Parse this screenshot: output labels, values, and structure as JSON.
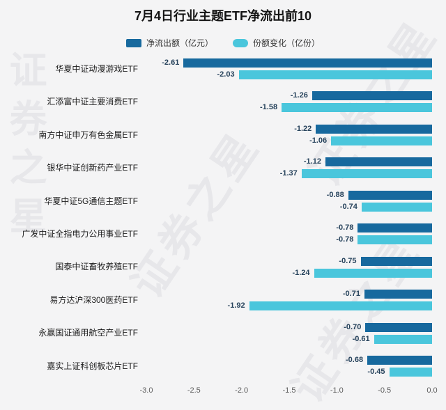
{
  "title": "7月4日行业主题ETF净流出前10",
  "watermark": "证券之星",
  "legend": [
    {
      "label": "净流出额（亿元）",
      "color": "#17699e"
    },
    {
      "label": "份额变化（亿份）",
      "color": "#4ac6dc"
    }
  ],
  "chart_data": {
    "type": "bar",
    "orientation": "horizontal",
    "title": "7月4日行业主题ETF净流出前10",
    "legend_position": "top",
    "grid": false,
    "xlim": [
      -3.0,
      0.0
    ],
    "x_ticks": [
      "-3.0",
      "-2.5",
      "-2.0",
      "-1.5",
      "-1.0",
      "-0.5",
      "0.0"
    ],
    "categories": [
      "华夏中证动漫游戏ETF",
      "汇添富中证主要消费ETF",
      "南方中证申万有色金属ETF",
      "银华中证创新药产业ETF",
      "华夏中证5G通信主题ETF",
      "广发中证全指电力公用事业ETF",
      "国泰中证畜牧养殖ETF",
      "易方达沪深300医药ETF",
      "永赢国证通用航空产业ETF",
      "嘉实上证科创板芯片ETF"
    ],
    "series": [
      {
        "name": "净流出额（亿元）",
        "key": "net-outflow",
        "color": "#17699e",
        "values": [
          -2.61,
          -1.26,
          -1.22,
          -1.12,
          -0.88,
          -0.78,
          -0.75,
          -0.71,
          -0.7,
          -0.68
        ]
      },
      {
        "name": "份额变化（亿份）",
        "key": "share-change",
        "color": "#4ac6dc",
        "values": [
          -2.03,
          -1.58,
          -1.06,
          -1.37,
          -0.74,
          -0.78,
          -1.24,
          -1.92,
          -0.61,
          -0.45
        ]
      }
    ]
  }
}
